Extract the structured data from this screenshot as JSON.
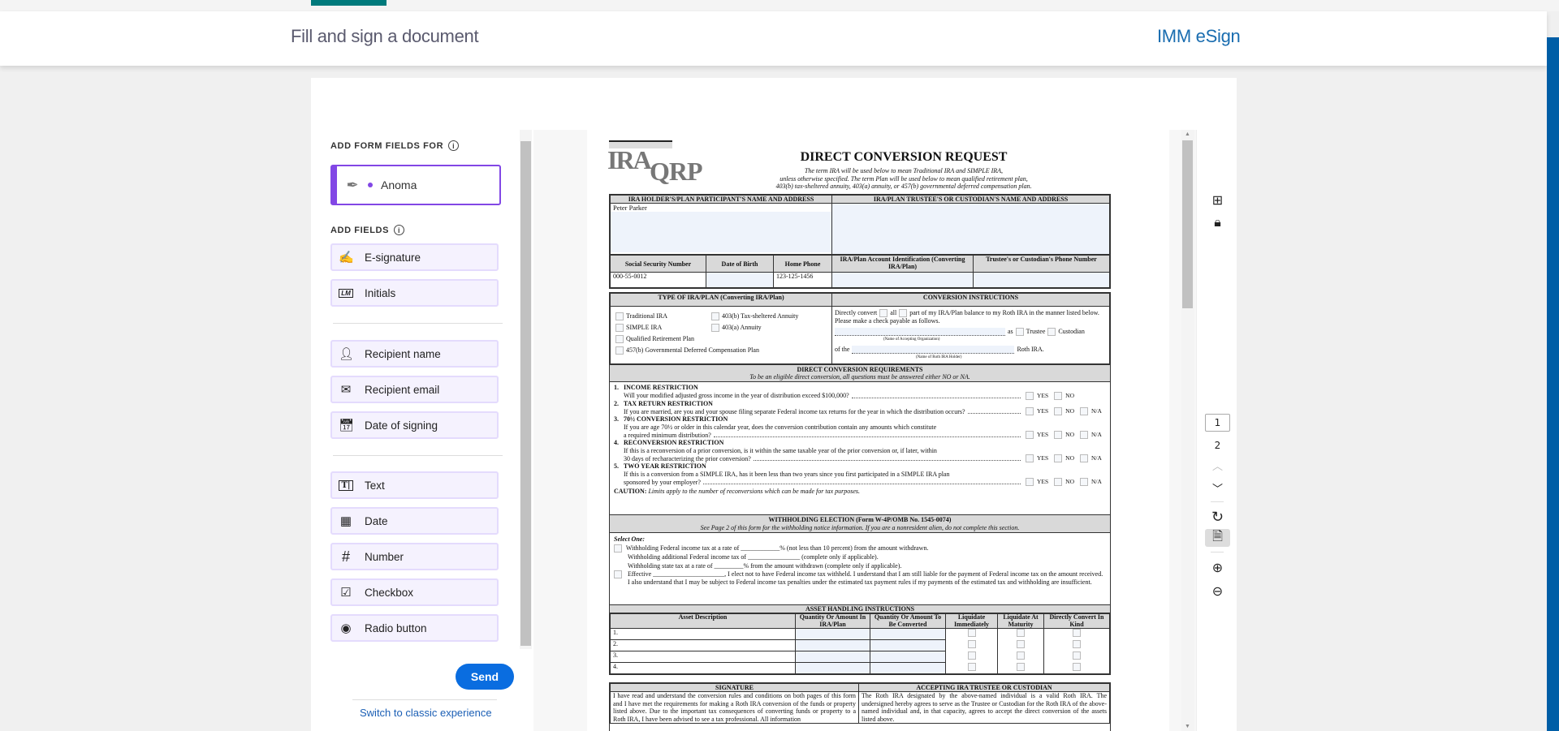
{
  "header": {
    "title": "Fill and sign a document",
    "brand": "IMM eSign"
  },
  "colors": {
    "accent": "#8247e5",
    "send": "#0a6de0",
    "brand": "#1a6db0",
    "teal": "#007a7c"
  },
  "left": {
    "form_fields_for": "ADD FORM FIELDS FOR",
    "recipient": "Anoma",
    "add_fields": "ADD FIELDS",
    "fields": [
      {
        "label": "E-signature",
        "icon": "signature-icon"
      },
      {
        "label": "Initials",
        "icon": "initials-icon"
      },
      {
        "label": "Recipient name",
        "icon": "person-icon"
      },
      {
        "label": "Recipient email",
        "icon": "email-icon"
      },
      {
        "label": "Date of signing",
        "icon": "calendar-icon"
      },
      {
        "label": "Text",
        "icon": "text-field-icon"
      },
      {
        "label": "Date",
        "icon": "date-icon"
      },
      {
        "label": "Number",
        "icon": "hash-icon"
      },
      {
        "label": "Checkbox",
        "icon": "checkbox-icon"
      },
      {
        "label": "Radio button",
        "icon": "radio-icon"
      }
    ],
    "send": "Send",
    "switch": "Switch to classic experience"
  },
  "toolbar": {
    "pages": [
      "1",
      "2"
    ],
    "current_page": "1"
  },
  "doc": {
    "logo": "IRA QRP",
    "title": "DIRECT CONVERSION REQUEST",
    "subtitle": [
      "The term IRA will be used below to mean Traditional IRA and SIMPLE IRA,",
      "unless otherwise specified. The term Plan will be used below to mean qualified retirement plan,",
      "403(b) tax-sheltered annuity, 403(a) annuity, or 457(b) governmental deferred compensation plan."
    ],
    "holder_header": "IRA HOLDER'S/PLAN PARTICIPANT'S NAME AND ADDRESS",
    "trustee_header": "IRA/PLAN TRUSTEE'S OR CUSTODIAN'S NAME AND ADDRESS",
    "holder_name": "Peter Parker",
    "cols": [
      "Social Security Number",
      "Date of Birth",
      "Home Phone",
      "IRA/Plan Account Identification (Converting IRA/Plan)",
      "Trustee's or Custodian's Phone Number"
    ],
    "ssn": "000-55-0012",
    "dob": "",
    "phone": "123-125-1456",
    "type_header": "TYPE OF IRA/PLAN (Converting IRA/Plan)",
    "types": [
      "Traditional IRA",
      "403(b) Tax-sheltered Annuity",
      "SIMPLE IRA",
      "403(a) Annuity",
      "Qualified Retirement Plan",
      "457(b) Governmental Deferred Compensation Plan"
    ],
    "conv_header": "CONVERSION INSTRUCTIONS",
    "conv": {
      "a": "Directly convert",
      "all": "all",
      "b": "part of my IRA/Plan balance to my Roth IRA in the manner listed below. Please make a check payable as follows.",
      "as": "as",
      "trustee": "Trustee",
      "custodian": "Custodian",
      "org_label": "(Name of Accepting Organization)",
      "of_the": "of the",
      "roth": "Roth IRA.",
      "holder_label": "(Name of Roth IRA Holder)"
    },
    "dcr_header": "DIRECT CONVERSION REQUIREMENTS",
    "dcr_sub": "To be an eligible direct conversion, all questions must be answered either NO or NA.",
    "questions": [
      {
        "n": "1.",
        "title": "INCOME RESTRICTION",
        "text": "Will your modified adjusted gross income in the year of distribution exceed $100,000?"
      },
      {
        "n": "2.",
        "title": "TAX RETURN RESTRICTION",
        "text": "If you are married, are you and your spouse filing separate Federal income tax returns for the year in which the distribution occurs?"
      },
      {
        "n": "3.",
        "title": "70½ CONVERSION RESTRICTION",
        "text1": "If you are age 70½ or older in this calendar year, does the conversion contribution contain any amounts which constitute",
        "text": "a required minimum distribution?"
      },
      {
        "n": "4.",
        "title": "RECONVERSION RESTRICTION",
        "text1": "If this is a reconversion of a prior conversion, is it within the same taxable year of the prior conversion or, if later, within",
        "text": "30 days of recharacterizing the prior conversion?"
      },
      {
        "n": "5.",
        "title": "TWO YEAR RESTRICTION",
        "text1": "If this is a conversion from a SIMPLE IRA, has it been less than two years since you first participated in a SIMPLE IRA plan",
        "text": "sponsored by your employer?"
      }
    ],
    "yes": "YES",
    "no": "NO",
    "na": "N/A",
    "caution_label": "CAUTION:",
    "caution": "Limits apply to the number of reconversions which can be made for tax purposes.",
    "wh_header": "WITHHOLDING ELECTION (Form W-4P/OMB No. 1545-0074)",
    "wh_sub": "See Page 2 of this form for the withholding notice information. If you are a nonresident alien, do not complete this section.",
    "select_one": "Select One:",
    "wh": [
      "Withholding Federal income tax at a rate of ____________% (not less than 10 percent) from the amount withdrawn.",
      "Withholding additional Federal income tax of ________________ (complete only if applicable).",
      "Withholding state tax at a rate of _________% from the amount withdrawn (complete only if applicable).",
      "Effective ______________________, I elect not to have Federal income tax withheld. I understand that I am still liable for the payment of Federal income tax on the amount received. I also understand that I may be subject to Federal income tax penalties under the estimated tax payment rules if my payments of the estimated tax and withholding are insufficient."
    ],
    "asset_header": "ASSET HANDLING INSTRUCTIONS",
    "asset_cols": [
      "Asset Description",
      "Quantity Or Amount In IRA/Plan",
      "Quantity Or Amount To Be Converted",
      "Liquidate Immediately",
      "Liquidate At Maturity",
      "Directly Convert In Kind"
    ],
    "asset_rows": [
      "1.",
      "2.",
      "3.",
      "4."
    ],
    "sig_header": "SIGNATURE",
    "sig_text": "I have read and understand the conversion rules and conditions on both pages of this form and I have met the requirements for making a Roth IRA conversion of the funds or property listed above. Due to the important tax consequences of converting funds or property to a Roth IRA, I have been advised to see a tax professional. All information",
    "acc_header": "ACCEPTING IRA TRUSTEE OR CUSTODIAN",
    "acc_text": "The Roth IRA designated by the above-named individual is a valid Roth IRA. The undersigned hereby agrees to serve as the Trustee or Custodian for the Roth IRA of the above-named individual and, in that capacity, agrees to accept the direct conversion of the assets listed above."
  }
}
